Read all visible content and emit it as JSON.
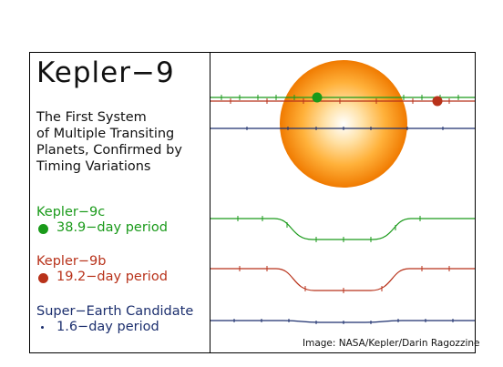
{
  "title": "Kepler−9",
  "subtitle_lines": [
    "The First System",
    "of Multiple Transiting",
    "Planets, Confirmed by",
    "Timing Variations"
  ],
  "planets": [
    {
      "name": "Kepler−9c",
      "period_label": "38.9−day period",
      "color": "#1a9a1a"
    },
    {
      "name": "Kepler−9b",
      "period_label": "19.2−day period",
      "color": "#b8321a"
    },
    {
      "name": "Super−Earth Candidate",
      "period_label": "1.6−day period",
      "color": "#1c2f6e"
    }
  ],
  "star_colors": {
    "center": "#ffffff",
    "mid": "#ffc04a",
    "edge": "#f07a00"
  },
  "credit": "Image: NASA/Kepler/Darin Ragozzine"
}
